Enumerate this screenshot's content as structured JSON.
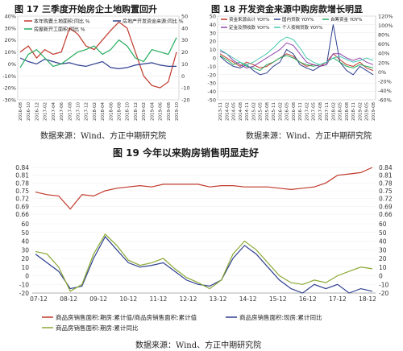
{
  "figure17": {
    "title": "图 17 三季度开始房企土地购置回升",
    "source": "数据来源：Wind、方正中期研究院"
  },
  "figure18": {
    "title": "图 18 开发资金来源中购房款增长明显",
    "source": "数据来源：Wind、方正中期研究院"
  },
  "figure19": {
    "title": "图 19 今年以来购房销售明显走好",
    "source": "数据来源：Wind、方正中期研究院"
  },
  "chart_data": [
    {
      "id": "fig17",
      "type": "line",
      "title": "",
      "x_tick_labels": [
        "2016-08",
        "2016-10",
        "2016-12",
        "2017-02",
        "2017-04",
        "2017-06",
        "2017-08",
        "2017-10",
        "2017-12",
        "2018-02",
        "2018-04",
        "2018-06",
        "2018-08",
        "2018-10",
        "2018-12",
        "2019-02",
        "2019-04",
        "2019-06",
        "2019-08",
        "2019-10"
      ],
      "ylim_left": [
        -30,
        40
      ],
      "yticks_left": [
        "40%",
        "30%",
        "20%",
        "10%",
        "0%",
        "-10%",
        "-20%",
        "-30%"
      ],
      "ylim_right": [
        -20,
        50
      ],
      "yticks_right": [
        "50",
        "40",
        "30",
        "20",
        "10",
        "0",
        "-10",
        "-20"
      ],
      "series": [
        {
          "name": "本年购置土地面积:同比 %",
          "color": "#c0392b",
          "axis": "left",
          "values": [
            10,
            15,
            5,
            12,
            8,
            10,
            30,
            25,
            15,
            12,
            20,
            28,
            35,
            30,
            10,
            -10,
            -18,
            -20,
            -15,
            10
          ]
        },
        {
          "name": "房地产开发资金来源:同比 %",
          "color": "#2e3f8f",
          "axis": "right",
          "values": [
            15,
            12,
            10,
            14,
            12,
            10,
            11,
            9,
            8,
            10,
            12,
            7,
            6,
            7,
            9,
            10,
            11,
            9,
            8,
            8
          ]
        },
        {
          "name": "房屋新开工面积:同比 %",
          "color": "#27ae60",
          "axis": "left",
          "values": [
            -3,
            8,
            12,
            5,
            -2,
            0,
            5,
            10,
            12,
            15,
            8,
            12,
            20,
            15,
            5,
            2,
            12,
            10,
            8,
            22
          ]
        }
      ]
    },
    {
      "id": "fig18",
      "type": "line",
      "title": "",
      "x_tick_labels": [
        "2013-11",
        "2014-02",
        "2014-05",
        "2014-08",
        "2014-11",
        "2015-02",
        "2015-05",
        "2015-08",
        "2015-11",
        "2016-02",
        "2016-05",
        "2016-08",
        "2016-11",
        "2017-02",
        "2017-05",
        "2017-08",
        "2017-11",
        "2018-02",
        "2018-05",
        "2018-08",
        "2018-11",
        "2019-02",
        "2019-05",
        "2019-08"
      ],
      "ylim_left": [
        -50,
        50
      ],
      "yticks_left": [
        "50",
        "40",
        "30",
        "20",
        "10",
        "0",
        "-10",
        "-20",
        "-30",
        "-40",
        "-50"
      ],
      "ylim_right": [
        -60,
        120
      ],
      "yticks_right": [
        "120%",
        "100%",
        "80%",
        "60%",
        "40%",
        "20%",
        "0%",
        "-20%",
        "-40%",
        "-60%"
      ],
      "series": [
        {
          "name": "资金来源合计 YOY%",
          "color": "#c0392b",
          "axis": "left",
          "values": [
            5,
            0,
            -5,
            -10,
            -5,
            -8,
            -12,
            -10,
            -5,
            0,
            5,
            2,
            -5,
            -10,
            -8,
            -10,
            -5,
            5,
            -2,
            -8,
            -10,
            -5,
            -12,
            -15
          ]
        },
        {
          "name": "国内贷款 YOY%",
          "color": "#2e3f8f",
          "axis": "left",
          "values": [
            2,
            -5,
            -10,
            -12,
            -8,
            -15,
            -20,
            -18,
            -10,
            -5,
            10,
            5,
            -8,
            -12,
            -15,
            -10,
            -8,
            40,
            -5,
            -15,
            -20,
            -10,
            -15,
            -20
          ]
        },
        {
          "name": "自筹资金 YOY%",
          "color": "#27ae60",
          "axis": "left",
          "values": [
            3,
            -2,
            -8,
            -5,
            -10,
            -12,
            -15,
            -8,
            -5,
            0,
            3,
            0,
            -5,
            -8,
            -10,
            -8,
            -5,
            0,
            -5,
            -10,
            -12,
            -8,
            -10,
            -12
          ]
        },
        {
          "name": "定金及预收款 YOY%",
          "color": "#8e44ad",
          "axis": "left",
          "values": [
            8,
            5,
            -3,
            -8,
            -12,
            -10,
            -5,
            0,
            5,
            10,
            18,
            15,
            5,
            -5,
            -8,
            -10,
            -8,
            5,
            5,
            0,
            -3,
            0,
            -5,
            -8
          ]
        },
        {
          "name": "个人按揭贷款 YOY%",
          "color": "#48c9b0",
          "axis": "left",
          "values": [
            10,
            5,
            0,
            -5,
            -8,
            -5,
            0,
            5,
            12,
            20,
            25,
            22,
            12,
            0,
            -5,
            -8,
            -5,
            0,
            2,
            -2,
            -5,
            -3,
            0,
            -3
          ]
        }
      ]
    },
    {
      "id": "fig19",
      "type": "line",
      "title": "",
      "x_tick_labels": [
        "07-12",
        "08-12",
        "09-12",
        "10-12",
        "11-12",
        "12-12",
        "13-12",
        "14-12",
        "15-12",
        "16-12",
        "17-12",
        "18-12"
      ],
      "ylim_top": [
        0.66,
        0.84
      ],
      "yticks_top": [
        "0.84",
        "0.81",
        "0.78",
        "0.75",
        "0.72",
        "0.69",
        "0.66"
      ],
      "ylim_bottom": [
        -20,
        60
      ],
      "yticks_bottom": [
        "60",
        "50",
        "40",
        "30",
        "20",
        "10",
        "0",
        "-10",
        "-20"
      ],
      "series": [
        {
          "name": "商品房销售面积:期房:累计值/商品房销售面积:累计值",
          "color": "#c0392b",
          "panel": "top",
          "values": [
            0.745,
            0.735,
            0.73,
            0.68,
            0.735,
            0.73,
            0.75,
            0.76,
            0.765,
            0.77,
            0.765,
            0.775,
            0.775,
            0.775,
            0.775,
            0.765,
            0.77,
            0.77,
            0.765,
            0.765,
            0.765,
            0.76,
            0.755,
            0.76,
            0.765,
            0.78,
            0.81,
            0.815,
            0.82,
            0.84
          ]
        },
        {
          "name": "商品房销售面积:现房:累计同比",
          "color": "#2e3f8f",
          "panel": "bottom",
          "values": [
            25,
            15,
            5,
            -15,
            -12,
            20,
            45,
            30,
            15,
            10,
            12,
            15,
            5,
            -5,
            -10,
            -12,
            -5,
            20,
            35,
            25,
            10,
            -5,
            -15,
            -20,
            -10,
            -15,
            -10,
            -20,
            -15,
            -18
          ]
        },
        {
          "name": "商品房销售面积:期房:累计同比",
          "color": "#8aa832",
          "panel": "bottom",
          "values": [
            28,
            25,
            10,
            -18,
            -10,
            25,
            48,
            35,
            18,
            12,
            15,
            20,
            8,
            -2,
            -8,
            -15,
            -5,
            25,
            40,
            30,
            15,
            0,
            -8,
            -10,
            -5,
            -8,
            0,
            5,
            10,
            8
          ]
        }
      ]
    }
  ]
}
